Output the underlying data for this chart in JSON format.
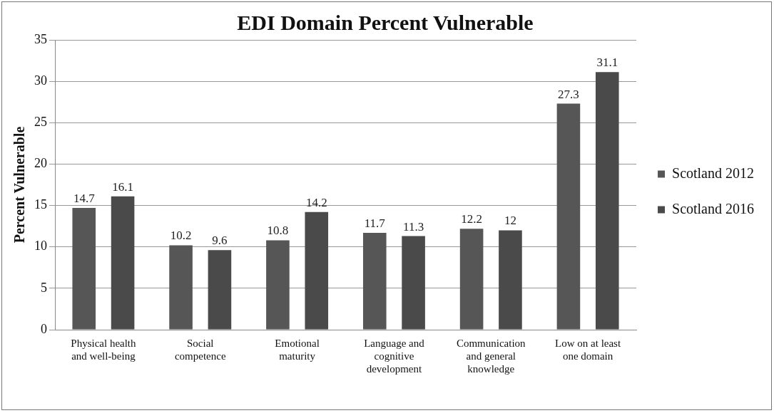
{
  "chart_data": {
    "type": "bar",
    "title": "EDI Domain Percent Vulnerable",
    "ylabel": "Percent Vulnerable",
    "categories": [
      "Physical health and well-being",
      "Social competence",
      "Emotional maturity",
      "Language and cognitive development",
      "Communication and general knowledge",
      "Low on at least one domain"
    ],
    "series": [
      {
        "name": "Scotland 2012",
        "color": "#565656",
        "values": [
          14.7,
          10.2,
          10.8,
          11.7,
          12.2,
          27.3
        ]
      },
      {
        "name": "Scotland 2016",
        "color": "#4a4a4a",
        "values": [
          16.1,
          9.6,
          14.2,
          11.3,
          12,
          31.1
        ]
      }
    ],
    "ylim": [
      0,
      35
    ],
    "yticks": [
      0,
      5,
      10,
      15,
      20,
      25,
      30,
      35
    ],
    "grid": "y",
    "legend": "right",
    "data_labels": true
  }
}
